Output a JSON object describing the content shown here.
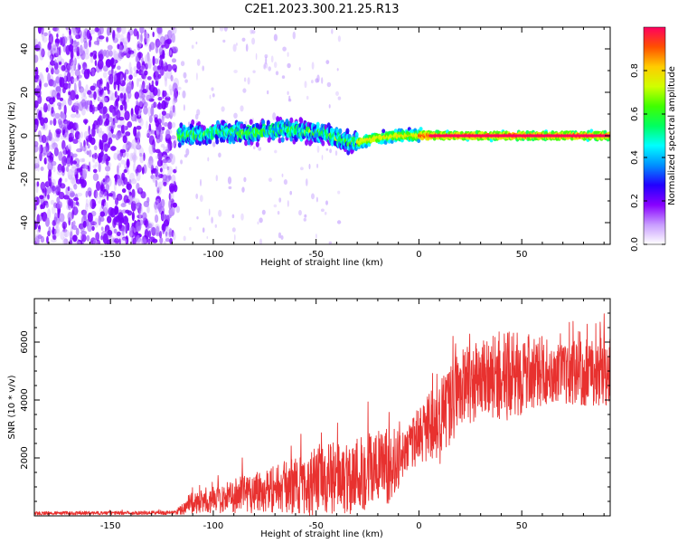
{
  "title": "C2E1.2023.300.21.25.R13",
  "chart_data": [
    {
      "type": "heatmap",
      "xlabel": "Height of straight line (km)",
      "ylabel": "Frequency (Hz)",
      "xlim": [
        -187,
        93
      ],
      "ylim": [
        -50,
        50
      ],
      "xticks": [
        -150,
        -100,
        -50,
        0,
        50
      ],
      "yticks": [
        -40,
        -20,
        0,
        20,
        40
      ],
      "colorbar": {
        "label": "Normalized spectral amplitude",
        "range": [
          0,
          1
        ],
        "ticks": [
          0.0,
          0.2,
          0.4,
          0.6,
          0.8
        ],
        "colormap": [
          "#ffffff",
          "#c89cff",
          "#8800ff",
          "#2200ff",
          "#0090ff",
          "#00ffff",
          "#00ff60",
          "#40ff00",
          "#d0ff00",
          "#ffcc00",
          "#ff5000",
          "#ff0060"
        ]
      },
      "features": {
        "noise_region_x": [
          -187,
          -118
        ],
        "signal_trace": {
          "x": [
            -117,
            -105,
            -95,
            -85,
            -75,
            -65,
            -55,
            -45,
            -38,
            -30,
            -20,
            -10,
            0,
            10,
            20,
            40,
            60,
            93
          ],
          "y": [
            0,
            0.5,
            2,
            1,
            2,
            3,
            2,
            1,
            -2,
            -3,
            -1,
            0,
            0,
            0,
            0,
            0,
            0,
            0
          ]
        }
      },
      "grid": false
    },
    {
      "type": "line",
      "xlabel": "Height of straight line (km)",
      "ylabel": "SNR (10 * v/v)",
      "xlim": [
        -187,
        93
      ],
      "ylim": [
        0,
        7500
      ],
      "xticks": [
        -150,
        -100,
        -50,
        0,
        50
      ],
      "yticks": [
        2000,
        4000,
        6000
      ],
      "color": "#e8312f",
      "envelope": {
        "x": [
          -187,
          -150,
          -118,
          -112,
          -105,
          -95,
          -85,
          -75,
          -65,
          -55,
          -45,
          -35,
          -25,
          -15,
          -5,
          0,
          10,
          15,
          20,
          30,
          40,
          50,
          60,
          70,
          80,
          93
        ],
        "mean": [
          90,
          100,
          110,
          400,
          500,
          600,
          800,
          900,
          1000,
          1100,
          1300,
          1300,
          1600,
          1700,
          2300,
          2800,
          3200,
          3900,
          4400,
          4700,
          4800,
          4900,
          5000,
          4900,
          5000,
          5000
        ],
        "spread": [
          60,
          60,
          70,
          350,
          400,
          500,
          700,
          800,
          900,
          1100,
          1200,
          1300,
          1400,
          1300,
          800,
          1000,
          1500,
          1500,
          1400,
          1300,
          1600,
          1400,
          1200,
          1000,
          1200,
          1200
        ]
      },
      "grid": false
    }
  ]
}
